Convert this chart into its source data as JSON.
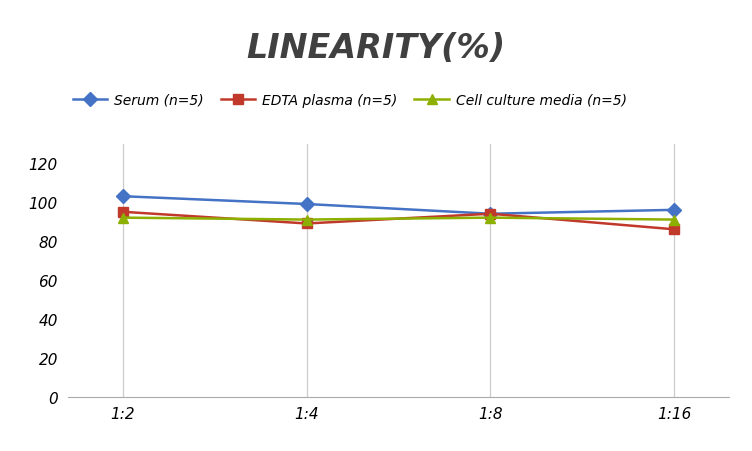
{
  "title": "LINEARITY(%)",
  "x_labels": [
    "1:2",
    "1:4",
    "1:8",
    "1:16"
  ],
  "series": [
    {
      "label": "Serum (n=5)",
      "values": [
        103,
        99,
        94,
        96
      ],
      "color": "#4472C4",
      "marker": "D",
      "markersize": 7,
      "linewidth": 1.8
    },
    {
      "label": "EDTA plasma (n=5)",
      "values": [
        95,
        89,
        94,
        86
      ],
      "color": "#C0392B",
      "marker": "s",
      "markersize": 7,
      "linewidth": 1.8
    },
    {
      "label": "Cell culture media (n=5)",
      "values": [
        92,
        91,
        92,
        91
      ],
      "color": "#8DB000",
      "marker": "^",
      "markersize": 7,
      "linewidth": 1.8
    }
  ],
  "ylim": [
    0,
    130
  ],
  "yticks": [
    0,
    20,
    40,
    60,
    80,
    100,
    120
  ],
  "background_color": "#ffffff",
  "title_fontsize": 24,
  "title_fontstyle": "italic",
  "title_fontweight": "bold",
  "legend_fontsize": 10,
  "tick_fontsize": 11,
  "grid_color": "#cccccc",
  "title_color": "#404040"
}
